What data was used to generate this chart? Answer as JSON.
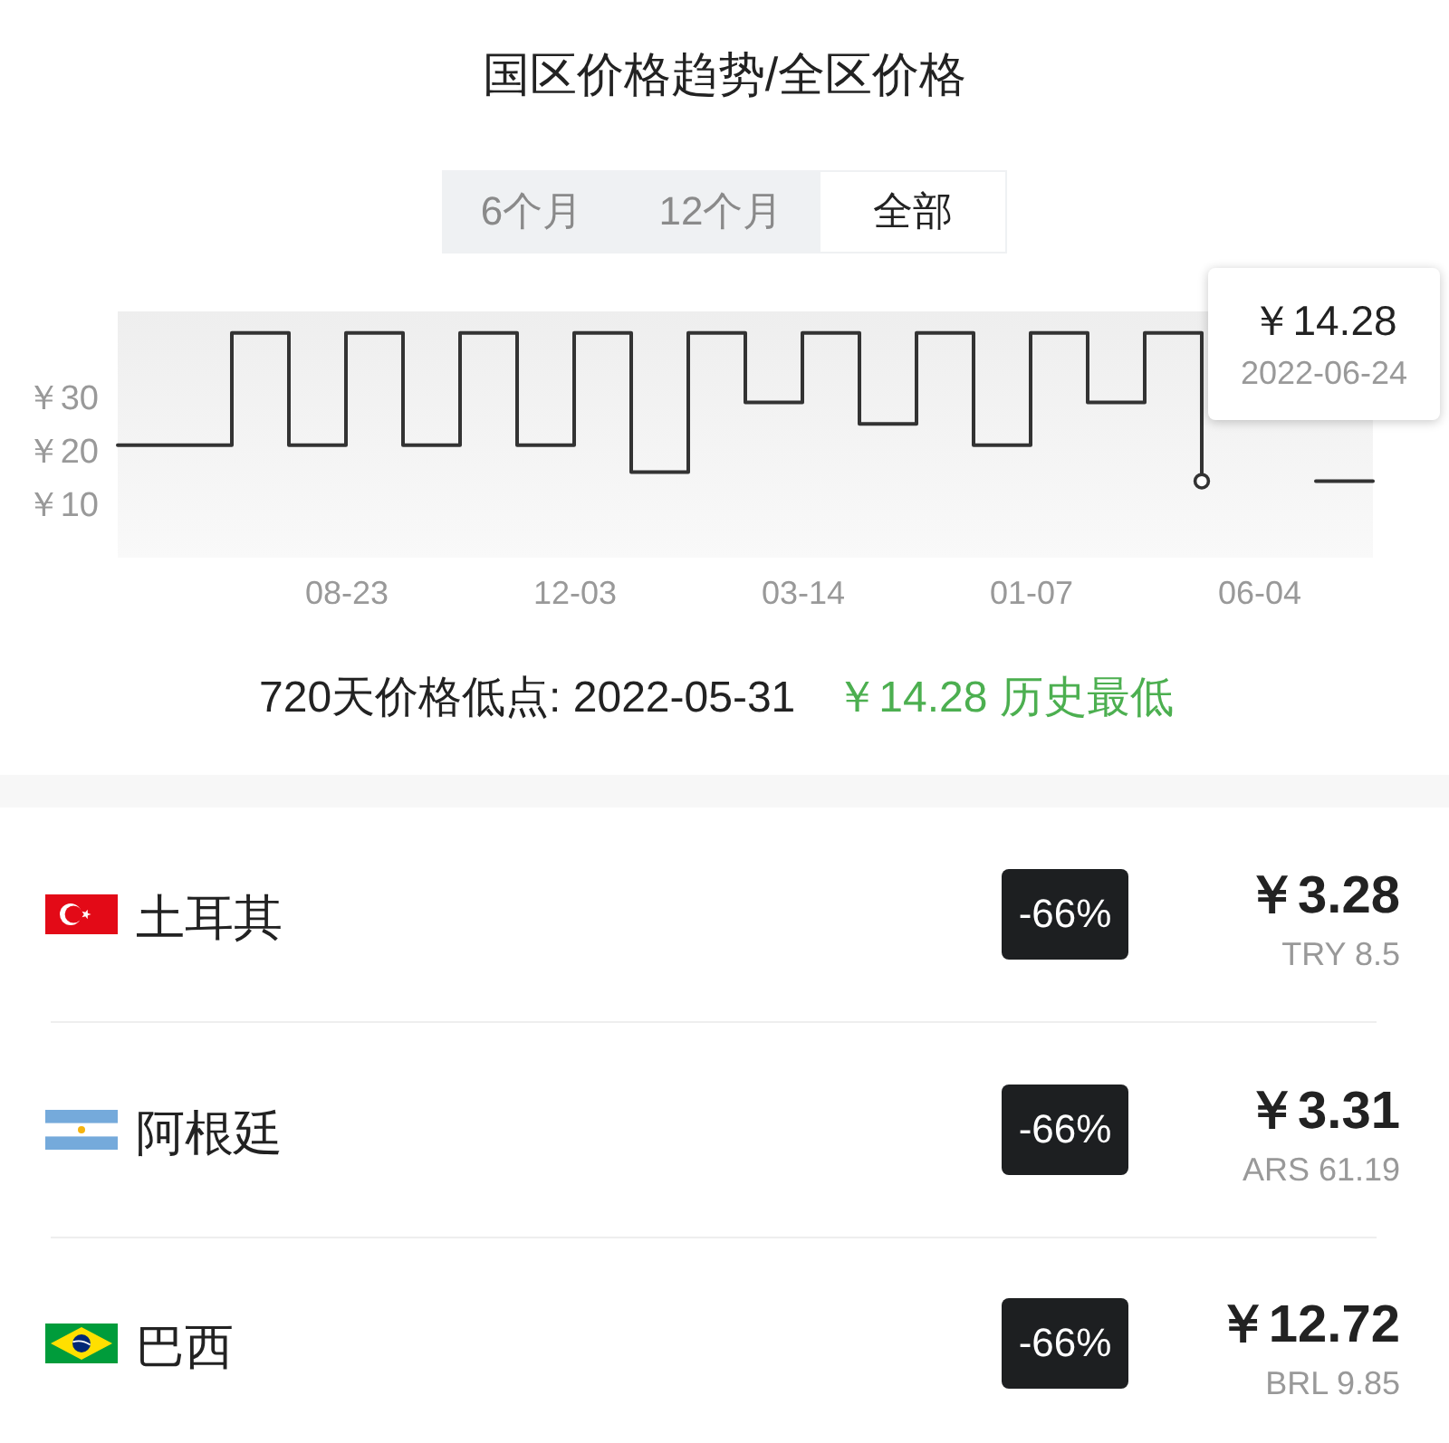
{
  "chart_data": [
    {
      "type": "step",
      "title": "国区价格趋势/全区价格",
      "categories": [
        null,
        null,
        null,
        null,
        "08-23",
        null,
        null,
        null,
        "12-03",
        null,
        null,
        null,
        "03-14",
        null,
        null,
        null,
        "01-07",
        null,
        null,
        null,
        "06-04",
        null,
        null
      ],
      "series": [
        {
          "type": "step",
          "color": "#333333",
          "values": [
            21,
            21,
            42,
            21,
            42,
            21,
            42,
            21,
            42,
            16,
            42,
            29,
            42,
            25,
            42,
            21,
            42,
            29,
            42,
            14.28,
            null,
            14.28,
            14.28
          ]
        },
        {
          "type": "scatter",
          "color": "#333333",
          "values": [
            null,
            null,
            null,
            null,
            null,
            null,
            null,
            null,
            null,
            null,
            null,
            null,
            null,
            null,
            null,
            null,
            null,
            null,
            null,
            14.28,
            null,
            null,
            null
          ]
        }
      ],
      "ylim": [
        0,
        46
      ],
      "yticks": [
        {
          "value": 10,
          "label": "￥10"
        },
        {
          "value": 20,
          "label": "￥20"
        },
        {
          "value": 30,
          "label": "￥30"
        }
      ],
      "annotations": [
        "6个月",
        "12个月",
        "全部",
        "￥14.28",
        "2022-06-24",
        "720天价格低点: 2022-05-31",
        "￥14.28 历史最低"
      ]
    },
    {
      "type": "other",
      "annotations": [
        "土耳其",
        "-66%",
        "￥3.28",
        "TRY 8.5",
        "阿根廷",
        "-66%",
        "￥3.31",
        "ARS 61.19",
        "巴西",
        "-66%",
        "￥12.72",
        "BRL 9.85"
      ]
    }
  ]
}
